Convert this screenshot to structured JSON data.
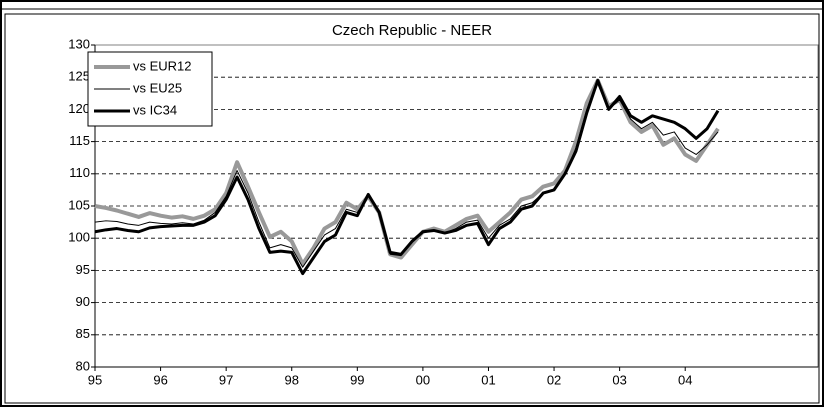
{
  "chart_data": {
    "type": "line",
    "title": "Czech Republic - NEER",
    "categories": [
      "95",
      null,
      null,
      null,
      null,
      null,
      "96",
      null,
      null,
      null,
      null,
      null,
      "97",
      null,
      null,
      null,
      null,
      null,
      "98",
      null,
      null,
      null,
      null,
      null,
      "99",
      null,
      null,
      null,
      null,
      null,
      "00",
      null,
      null,
      null,
      null,
      null,
      "01",
      null,
      null,
      null,
      null,
      null,
      "02",
      null,
      null,
      null,
      null,
      null,
      "03",
      null,
      null,
      null,
      null,
      null,
      "04",
      null,
      null,
      null
    ],
    "series": [
      {
        "name": "vs EUR12",
        "color": "#999999",
        "values": [
          105,
          104.7,
          104.3,
          103.8,
          103.3,
          103.9,
          103.5,
          103.2,
          103.4,
          103,
          103.5,
          104.5,
          107,
          111.8,
          108,
          104,
          100.2,
          101,
          99.5,
          96,
          98.5,
          101.5,
          102.5,
          105.5,
          104.5,
          106.5,
          104,
          97.5,
          97,
          99,
          101,
          101.5,
          101,
          102,
          103,
          103.5,
          101,
          102.5,
          104,
          106,
          106.5,
          108,
          108.5,
          110.5,
          115,
          121,
          124.5,
          120.5,
          121.5,
          118,
          116.5,
          117.5,
          114.5,
          115.5,
          113,
          112,
          114.5,
          117
        ]
      },
      {
        "name": "vs EU25",
        "color": "#000000",
        "values": [
          102.5,
          102.7,
          102.6,
          102.2,
          102,
          102.5,
          102.3,
          102.2,
          102.4,
          102.2,
          102.8,
          104,
          106.5,
          110.5,
          107,
          102.5,
          98.5,
          99,
          98.5,
          95.5,
          98,
          100.5,
          101.5,
          104.5,
          104,
          106.5,
          104,
          97.5,
          97.3,
          99.5,
          101,
          101.2,
          100.8,
          101.5,
          102.5,
          102.8,
          100,
          102,
          103,
          105,
          105.5,
          107,
          107.5,
          110,
          114,
          120,
          124,
          120,
          121.5,
          118.5,
          117,
          118,
          116,
          116.5,
          114,
          113,
          114.5,
          116.5
        ]
      },
      {
        "name": "vs IC34",
        "color": "#000000",
        "values": [
          101,
          101.3,
          101.5,
          101.2,
          101,
          101.6,
          101.8,
          101.9,
          102,
          102,
          102.5,
          103.5,
          106,
          109.5,
          106,
          101.5,
          97.8,
          98,
          97.8,
          94.5,
          97,
          99.5,
          100.5,
          104,
          103.5,
          106.8,
          104,
          97.8,
          97.5,
          99.5,
          101,
          101.2,
          100.8,
          101.2,
          102,
          102.3,
          99,
          101.5,
          102.5,
          104.5,
          105,
          107,
          107.5,
          110,
          113.5,
          119.5,
          124.5,
          120,
          122,
          119,
          118,
          119,
          118.5,
          118,
          117,
          115.5,
          117,
          119.8
        ]
      }
    ],
    "ylim": [
      80,
      130
    ],
    "yticks": [
      80,
      85,
      90,
      95,
      100,
      105,
      110,
      115,
      120,
      125,
      130
    ],
    "grid": true,
    "legend": "top-left"
  }
}
